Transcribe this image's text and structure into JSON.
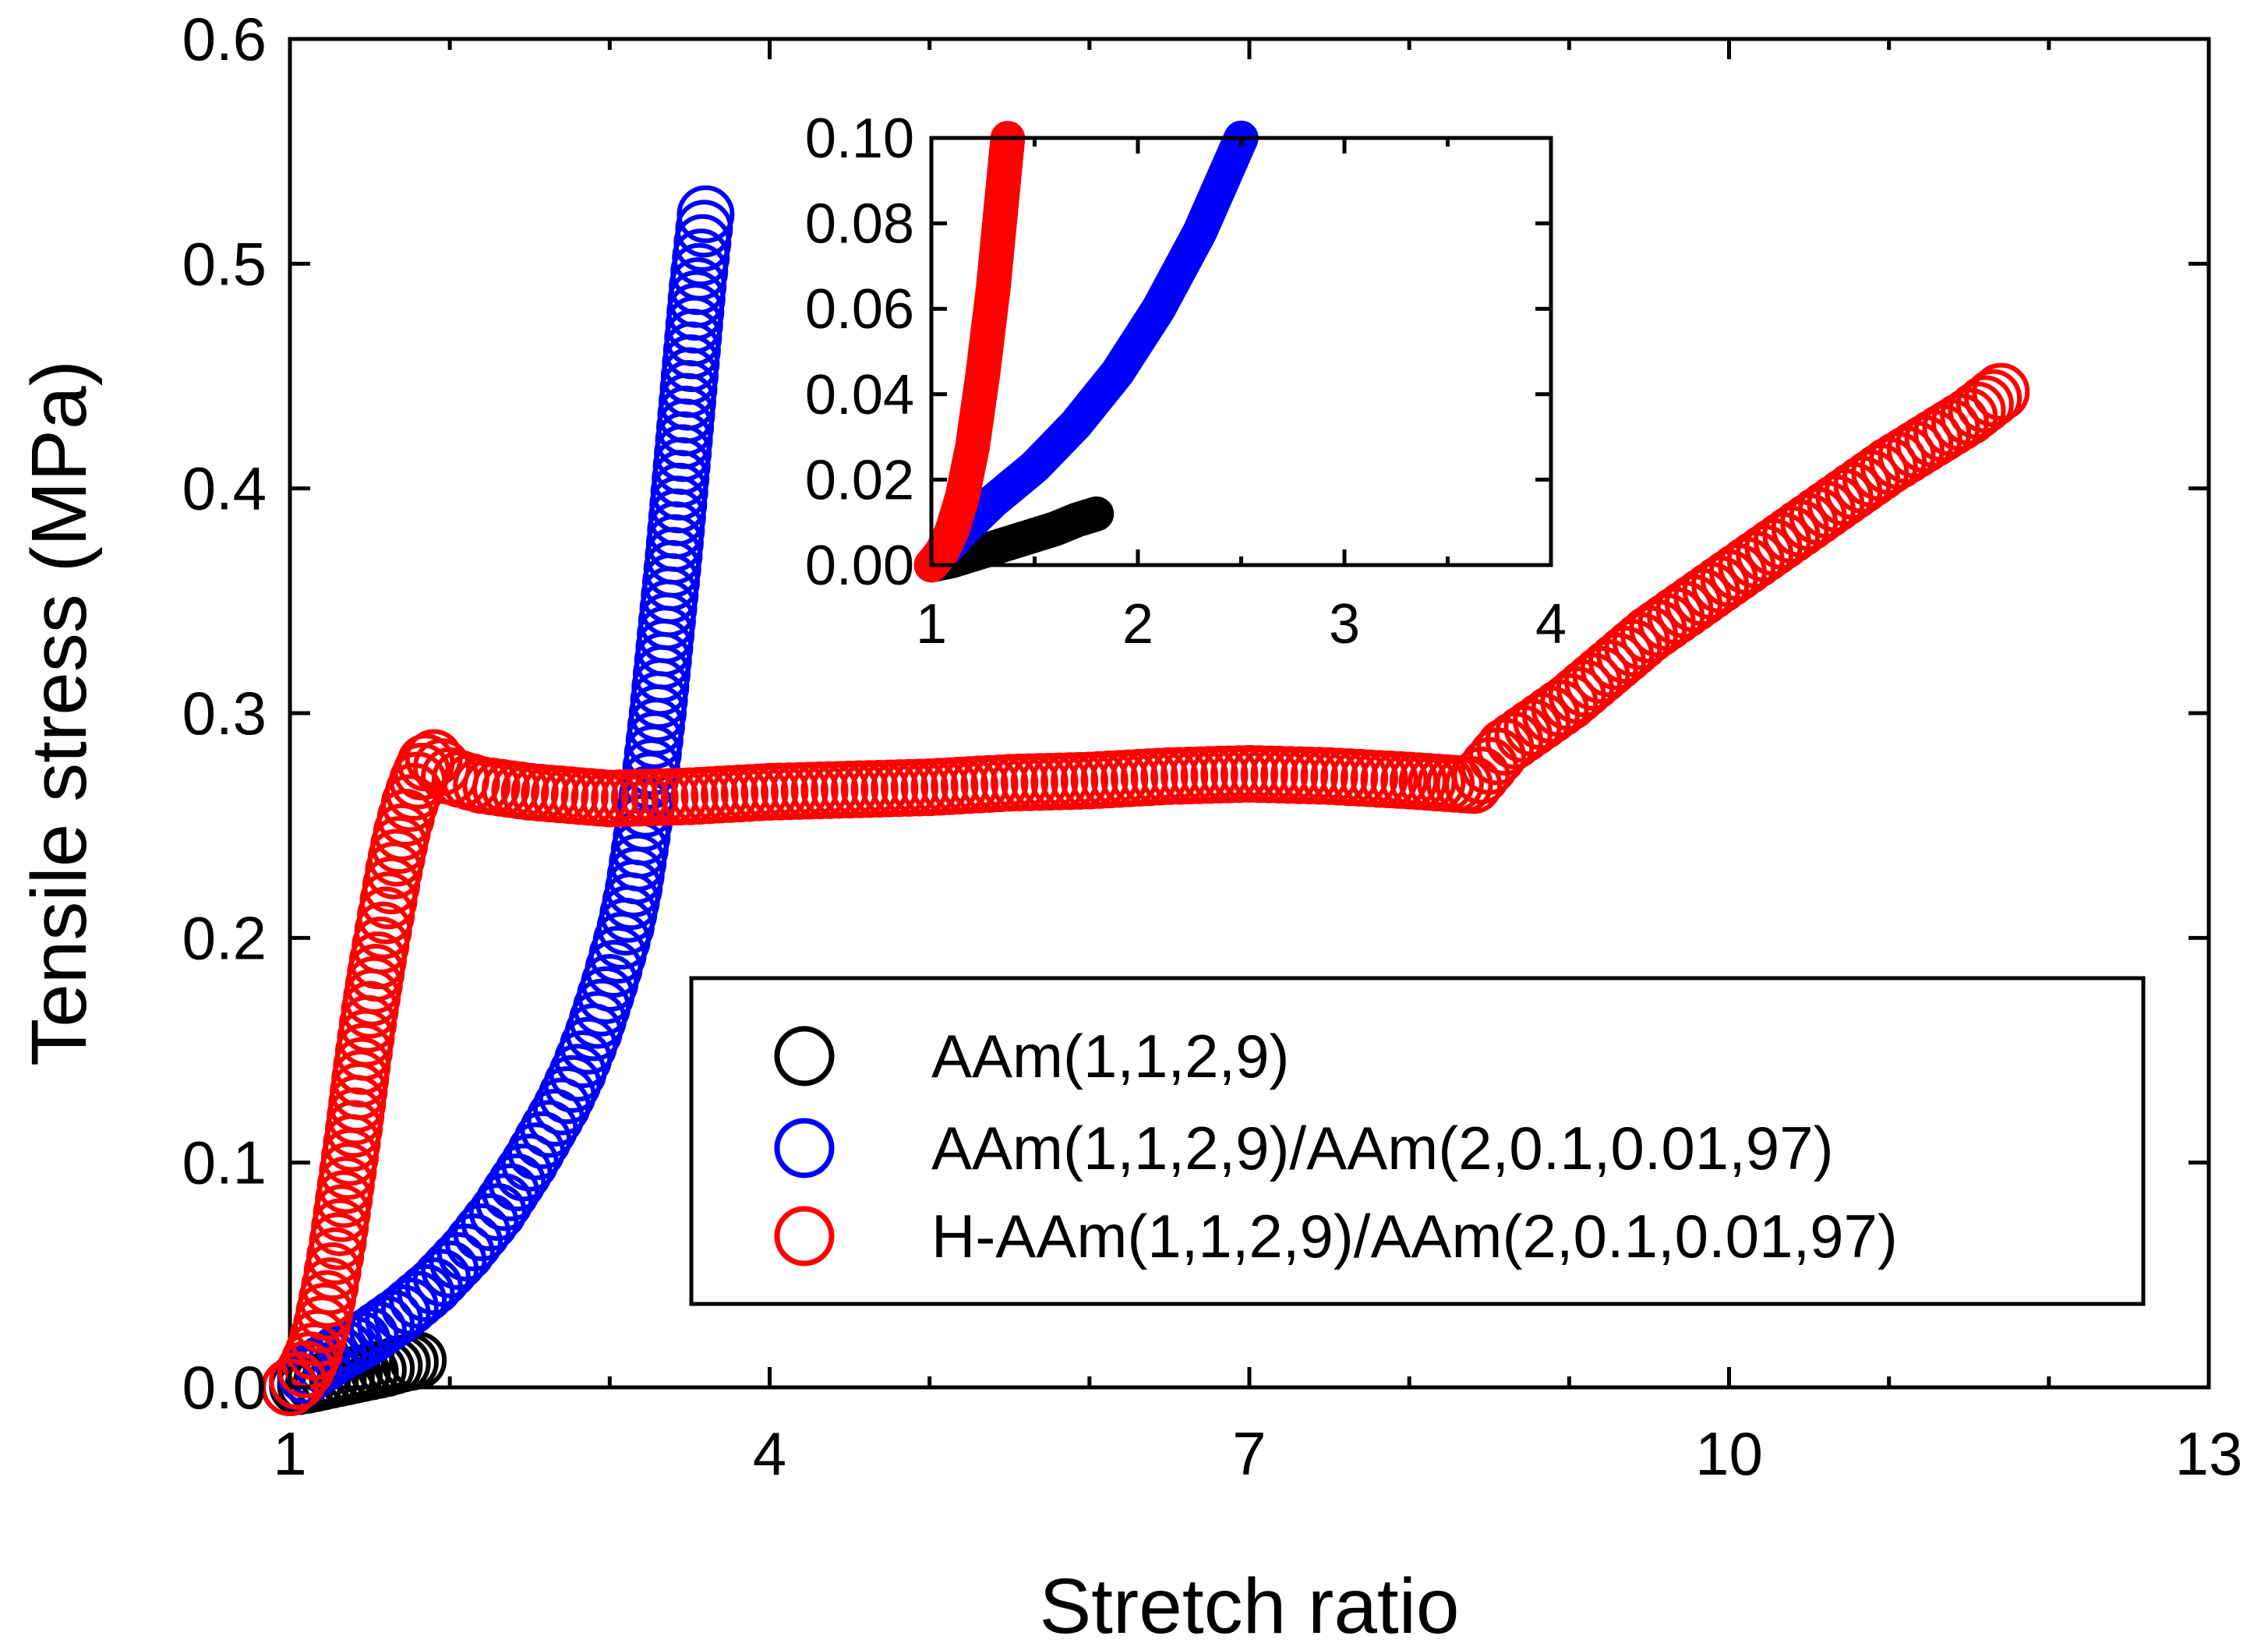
{
  "chart_data": {
    "type": "scatter",
    "xlabel": "Stretch ratio",
    "ylabel": "Tensile stress (MPa)",
    "xlim": [
      1,
      13
    ],
    "ylim": [
      0,
      0.6
    ],
    "xticks": [
      1,
      4,
      7,
      10,
      13
    ],
    "xtick_labels": [
      "1",
      "4",
      "7",
      "10",
      "13"
    ],
    "yticks": [
      0.0,
      0.1,
      0.2,
      0.3,
      0.4,
      0.5,
      0.6
    ],
    "ytick_labels": [
      "0.0",
      "0.1",
      "0.2",
      "0.3",
      "0.4",
      "0.5",
      "0.6"
    ],
    "grid": false,
    "legend_position": "lower-right",
    "series": [
      {
        "name": "AAm(1,1,2,9)",
        "color": "#000000",
        "marker": "open-circle",
        "x": [
          1.0,
          1.1,
          1.2,
          1.3,
          1.4,
          1.5,
          1.6,
          1.7,
          1.8
        ],
        "y": [
          0.0,
          0.001,
          0.0025,
          0.004,
          0.0055,
          0.007,
          0.0085,
          0.0105,
          0.012
        ]
      },
      {
        "name": "AAm(1,1,2,9)/AAm(2,0.1,0.01,97)",
        "color": "#0000FF",
        "marker": "open-circle",
        "x": [
          1.0,
          1.15,
          1.3,
          1.5,
          1.7,
          1.9,
          2.1,
          2.3,
          2.5,
          2.7,
          2.8,
          2.9,
          3.0,
          3.1,
          3.15,
          3.2,
          3.25,
          3.3,
          3.35,
          3.4,
          3.45,
          3.5,
          3.55,
          3.6
        ],
        "y": [
          0.0,
          0.008,
          0.015,
          0.023,
          0.033,
          0.045,
          0.06,
          0.078,
          0.1,
          0.125,
          0.14,
          0.158,
          0.18,
          0.205,
          0.222,
          0.245,
          0.27,
          0.3,
          0.335,
          0.37,
          0.41,
          0.45,
          0.49,
          0.522
        ]
      },
      {
        "name": "H-AAm(1,1,2,9)/AAm(2,0.1,0.01,97)",
        "color": "#FF0000",
        "marker": "open-circle",
        "x": [
          1.0,
          1.05,
          1.1,
          1.15,
          1.2,
          1.25,
          1.3,
          1.35,
          1.4,
          1.45,
          1.5,
          1.55,
          1.6,
          1.65,
          1.7,
          1.75,
          1.8,
          1.85,
          1.9,
          2.0,
          2.2,
          2.5,
          3.0,
          3.5,
          4.0,
          4.5,
          5.0,
          5.5,
          6.0,
          6.5,
          7.0,
          7.5,
          8.0,
          8.4,
          8.6,
          9.0,
          9.5,
          10.0,
          10.5,
          11.0,
          11.5,
          11.7
        ],
        "y": [
          0.0,
          0.003,
          0.008,
          0.016,
          0.028,
          0.045,
          0.065,
          0.09,
          0.115,
          0.143,
          0.168,
          0.19,
          0.21,
          0.23,
          0.247,
          0.26,
          0.27,
          0.278,
          0.28,
          0.272,
          0.268,
          0.265,
          0.262,
          0.263,
          0.265,
          0.266,
          0.267,
          0.269,
          0.27,
          0.272,
          0.273,
          0.272,
          0.27,
          0.268,
          0.285,
          0.305,
          0.335,
          0.36,
          0.385,
          0.41,
          0.432,
          0.443
        ]
      }
    ],
    "inset": {
      "xlim": [
        1,
        4
      ],
      "ylim": [
        0,
        0.1
      ],
      "xticks": [
        1,
        2,
        3,
        4
      ],
      "xtick_labels": [
        "1",
        "2",
        "3",
        "4"
      ],
      "yticks": [
        0.0,
        0.02,
        0.04,
        0.06,
        0.08,
        0.1
      ],
      "ytick_labels": [
        "0.00",
        "0.02",
        "0.04",
        "0.06",
        "0.08",
        "0.10"
      ]
    }
  }
}
